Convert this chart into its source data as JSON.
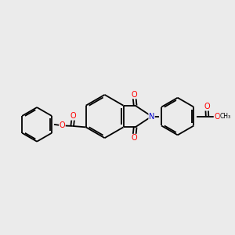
{
  "background_color": "#ebebeb",
  "bond_color": "#000000",
  "bond_width": 1.3,
  "atom_colors": {
    "O": "#ff0000",
    "N": "#0000cd",
    "C": "#000000"
  },
  "font_size_atom": 7.0,
  "font_size_small": 5.5
}
